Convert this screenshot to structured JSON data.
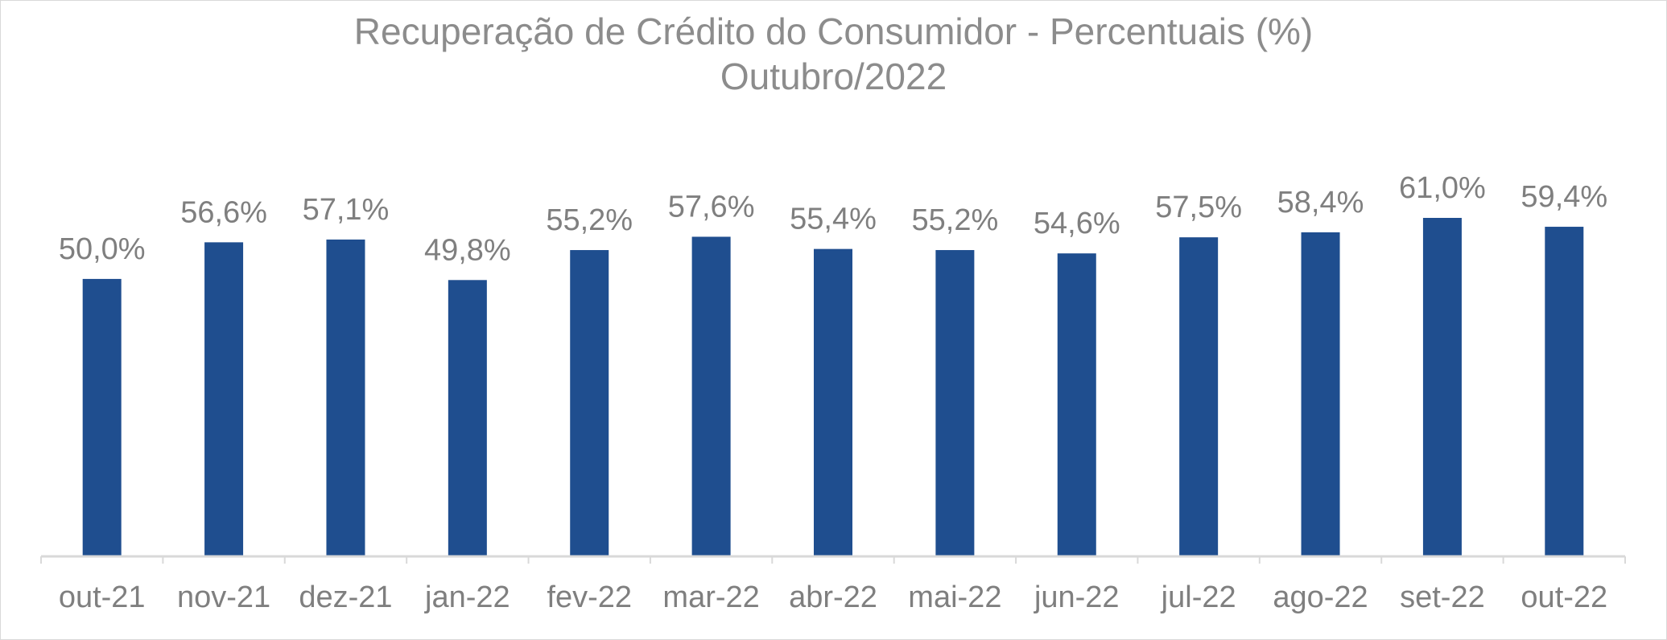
{
  "chart_data": {
    "type": "bar",
    "title": "Recuperação de Crédito do Consumidor - Percentuais (%)",
    "subtitle": "Outubro/2022",
    "categories": [
      "out-21",
      "nov-21",
      "dez-21",
      "jan-22",
      "fev-22",
      "mar-22",
      "abr-22",
      "mai-22",
      "jun-22",
      "jul-22",
      "ago-22",
      "set-22",
      "out-22"
    ],
    "values": [
      50.0,
      56.6,
      57.1,
      49.8,
      55.2,
      57.6,
      55.4,
      55.2,
      54.6,
      57.5,
      58.4,
      61.0,
      59.4
    ],
    "data_labels": [
      "50,0%",
      "56,6%",
      "57,1%",
      "49,8%",
      "55,2%",
      "57,6%",
      "55,4%",
      "55,2%",
      "54,6%",
      "57,5%",
      "58,4%",
      "61,0%",
      "59,4%"
    ],
    "ylim": [
      0,
      61.0
    ],
    "grid": false,
    "legend": "none",
    "bar_color": "#1f4e8f",
    "text_color": "#7f7f7f"
  }
}
